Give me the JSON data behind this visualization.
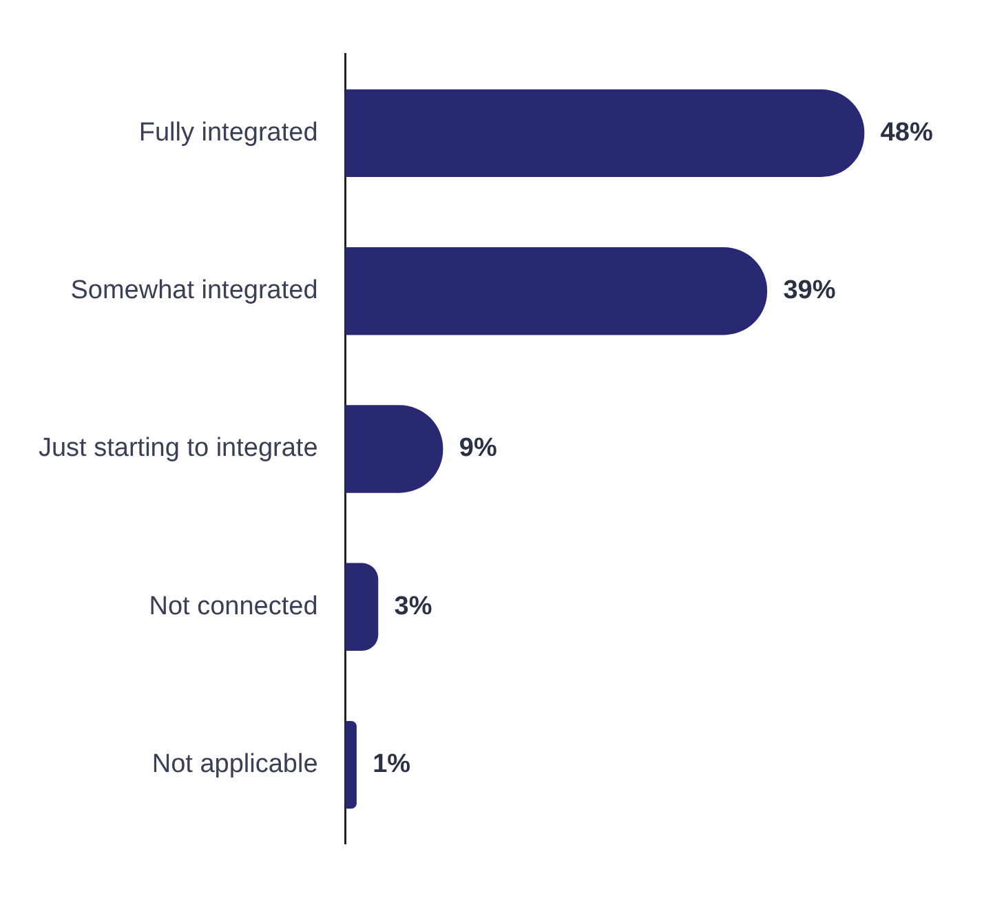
{
  "chart_data": {
    "type": "bar",
    "orientation": "horizontal",
    "categories": [
      "Fully integrated",
      "Somewhat integrated",
      "Just starting to integrate",
      "Not connected",
      "Not applicable"
    ],
    "values": [
      48,
      39,
      9,
      3,
      1
    ],
    "value_labels": [
      "48%",
      "39%",
      "9%",
      "3%",
      "1%"
    ],
    "color": "#282873"
  }
}
